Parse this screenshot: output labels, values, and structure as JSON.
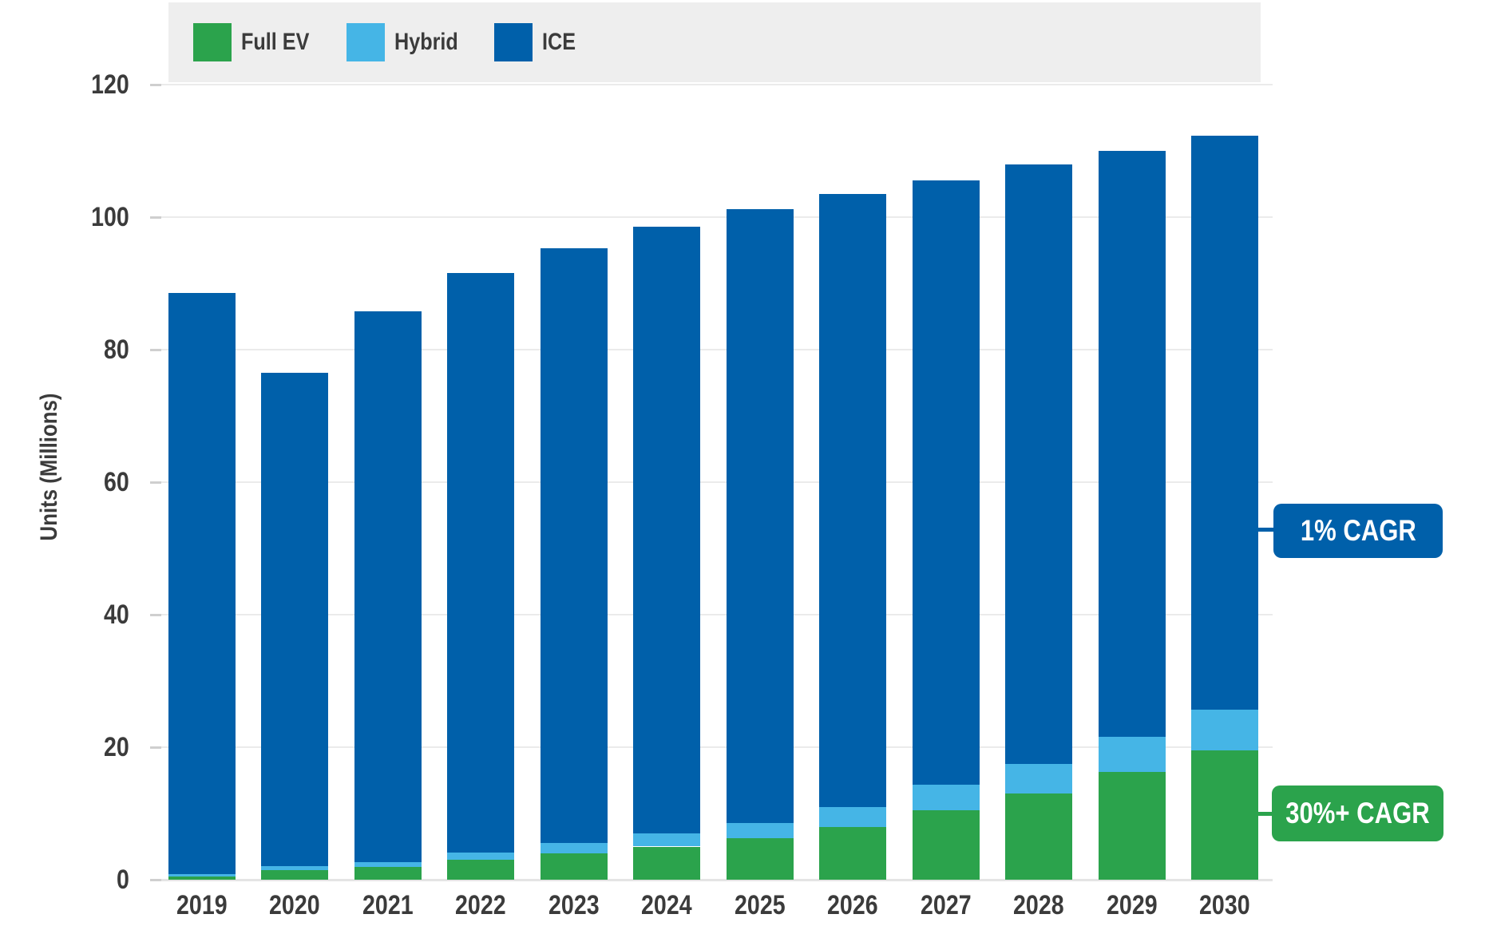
{
  "figure": {
    "y_axis_title": "Units (Millions)"
  },
  "legend": {
    "items": [
      {
        "label": "Full EV",
        "color": "#2BA34C"
      },
      {
        "label": "Hybrid",
        "color": "#45B5E6"
      },
      {
        "label": "ICE",
        "color": "#0060AA"
      }
    ]
  },
  "callouts": [
    {
      "label": "1% CAGR",
      "color": "#0060AA"
    },
    {
      "label": "30%+ CAGR",
      "color": "#2BA34C"
    }
  ],
  "colors": {
    "background": "#FFFFFF",
    "text": "#3B3B3B",
    "gridline": "#EBEBEB",
    "baseline": "#E4E4E4",
    "tick_dash": "#CFCFCF",
    "legend_bg": "#EEEEEE"
  },
  "chart_data": {
    "type": "bar",
    "stacked": true,
    "title": "",
    "xlabel": "",
    "ylabel": "Units (Millions)",
    "ylim": [
      0,
      120
    ],
    "yticks": [
      0,
      20,
      40,
      60,
      80,
      100,
      120
    ],
    "grid": "horizontal",
    "legend_position": "top-left",
    "categories": [
      "2019",
      "2020",
      "2021",
      "2022",
      "2023",
      "2024",
      "2025",
      "2026",
      "2027",
      "2028",
      "2029",
      "2030"
    ],
    "series": [
      {
        "name": "Full EV",
        "color": "#2BA34C",
        "values": [
          0.5,
          1.5,
          1.9,
          3.0,
          4.0,
          5.0,
          6.3,
          8.0,
          10.5,
          13.0,
          16.3,
          19.5
        ]
      },
      {
        "name": "Hybrid",
        "color": "#45B5E6",
        "values": [
          0.3,
          0.6,
          0.8,
          1.1,
          1.6,
          2.0,
          2.2,
          3.0,
          3.8,
          4.5,
          5.3,
          6.2
        ]
      },
      {
        "name": "ICE",
        "color": "#0060AA",
        "values": [
          87.8,
          74.4,
          83.1,
          87.5,
          89.7,
          91.5,
          92.7,
          92.5,
          91.3,
          90.4,
          88.4,
          86.6
        ]
      }
    ],
    "totals": [
      88.6,
      76.5,
      85.8,
      91.6,
      95.3,
      98.5,
      101.2,
      103.5,
      105.6,
      107.9,
      110.0,
      112.3
    ],
    "annotations": [
      {
        "text": "1% CAGR",
        "applies_to": "ICE"
      },
      {
        "text": "30%+ CAGR",
        "applies_to": "Full EV"
      }
    ]
  }
}
